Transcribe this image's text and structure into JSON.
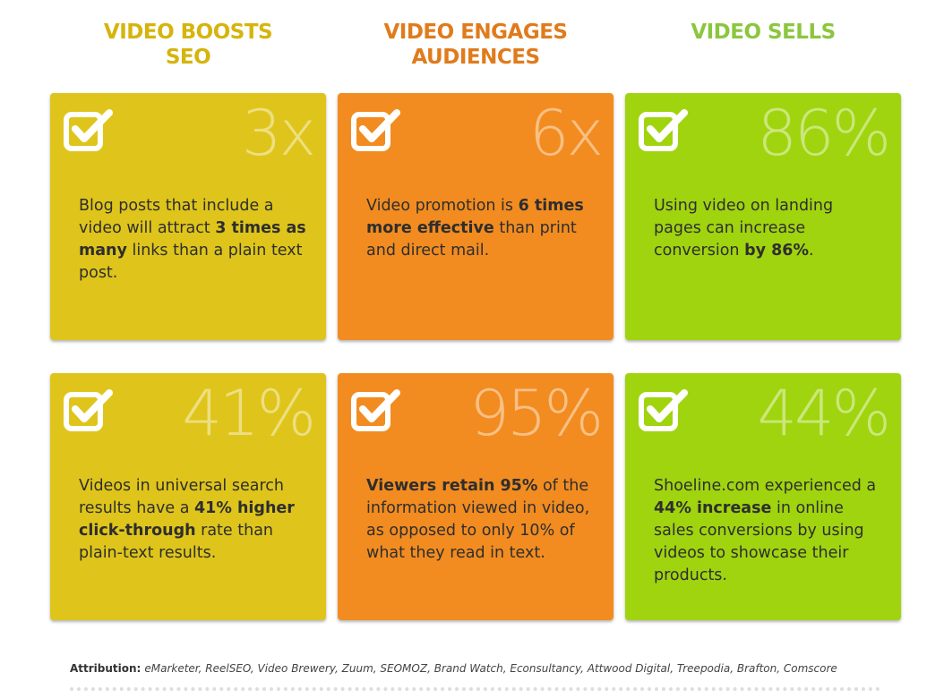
{
  "columns": [
    {
      "title": "VIDEO BOOSTS SEO",
      "heading_color": "#d6b40c",
      "card_color": "#dfc51b",
      "cards": [
        {
          "stat": "3x",
          "text": [
            {
              "text": "Blog posts that include a video will attract "
            },
            {
              "text": "3 times as many",
              "bold": true
            },
            {
              "text": " links than a plain text post."
            }
          ]
        },
        {
          "stat": "41%",
          "text": [
            {
              "text": "Videos in universal search results have a "
            },
            {
              "text": "41% higher click-through",
              "bold": true
            },
            {
              "text": " rate than plain-text results."
            }
          ]
        }
      ]
    },
    {
      "title": "VIDEO ENGAGES AUDIENCES",
      "heading_color": "#e07b1c",
      "card_color": "#f28c20",
      "cards": [
        {
          "stat": "6x",
          "text": [
            {
              "text": "Video promotion is "
            },
            {
              "text": "6 times more effective",
              "bold": true
            },
            {
              "text": " than print and direct mail."
            }
          ]
        },
        {
          "stat": "95%",
          "text": [
            {
              "text": "Viewers retain 95%",
              "bold": true
            },
            {
              "text": " of the information viewed in video, as opposed to only 10% of what they read in text."
            }
          ]
        }
      ]
    },
    {
      "title": "VIDEO SELLS",
      "heading_color": "#8cc63f",
      "card_color": "#a0d40f",
      "cards": [
        {
          "stat": "86%",
          "text": [
            {
              "text": "Using video on landing pages can increase conversion "
            },
            {
              "text": "by 86%",
              "bold": true
            },
            {
              "text": "."
            }
          ]
        },
        {
          "stat": "44%",
          "text": [
            {
              "text": "Shoeline.com experienced a "
            },
            {
              "text": "44% increase",
              "bold": true
            },
            {
              "text": " in online sales conversions by using videos to showcase their products."
            }
          ]
        }
      ]
    }
  ],
  "attribution": {
    "label": "Attribution:",
    "sources": "eMarketer, ReelSEO, Video Brewery, Zuum, SEOMOZ, Brand Watch, Econsultancy, Attwood Digital, Treepodia, Brafton, Comscore"
  }
}
